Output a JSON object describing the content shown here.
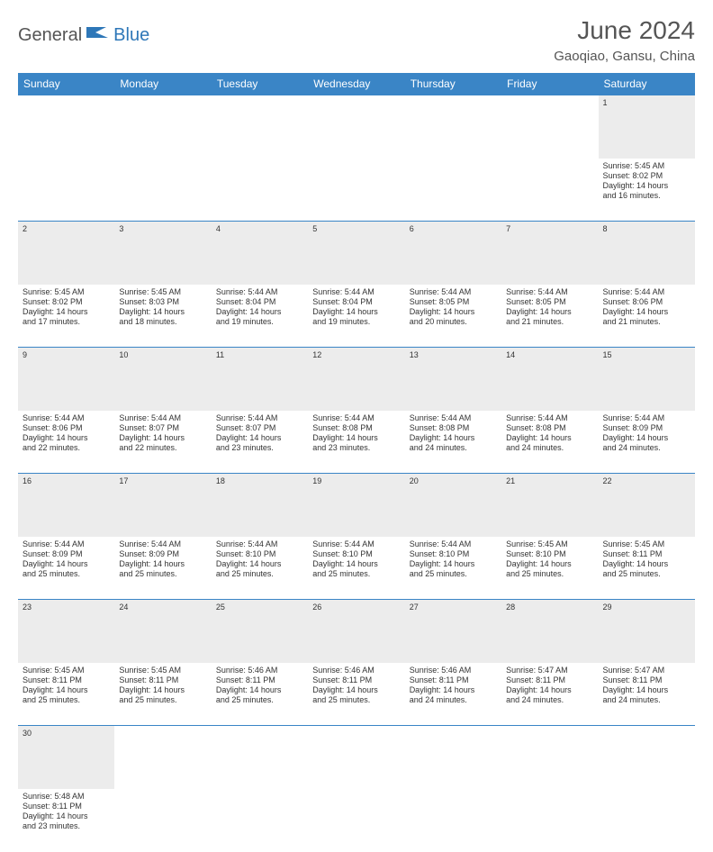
{
  "logo": {
    "part1": "General",
    "part2": "Blue"
  },
  "title": "June 2024",
  "location": "Gaoqiao, Gansu, China",
  "colors": {
    "header_bg": "#3a85c6",
    "header_fg": "#ffffff",
    "daynum_bg": "#ececec",
    "border": "#3a85c6",
    "logo_accent": "#2e77b8",
    "text": "#333333"
  },
  "weekdays": [
    "Sunday",
    "Monday",
    "Tuesday",
    "Wednesday",
    "Thursday",
    "Friday",
    "Saturday"
  ],
  "weeks": [
    {
      "nums": [
        "",
        "",
        "",
        "",
        "",
        "",
        "1"
      ],
      "cells": [
        null,
        null,
        null,
        null,
        null,
        null,
        {
          "sunrise": "Sunrise: 5:45 AM",
          "sunset": "Sunset: 8:02 PM",
          "day1": "Daylight: 14 hours",
          "day2": "and 16 minutes."
        }
      ]
    },
    {
      "nums": [
        "2",
        "3",
        "4",
        "5",
        "6",
        "7",
        "8"
      ],
      "cells": [
        {
          "sunrise": "Sunrise: 5:45 AM",
          "sunset": "Sunset: 8:02 PM",
          "day1": "Daylight: 14 hours",
          "day2": "and 17 minutes."
        },
        {
          "sunrise": "Sunrise: 5:45 AM",
          "sunset": "Sunset: 8:03 PM",
          "day1": "Daylight: 14 hours",
          "day2": "and 18 minutes."
        },
        {
          "sunrise": "Sunrise: 5:44 AM",
          "sunset": "Sunset: 8:04 PM",
          "day1": "Daylight: 14 hours",
          "day2": "and 19 minutes."
        },
        {
          "sunrise": "Sunrise: 5:44 AM",
          "sunset": "Sunset: 8:04 PM",
          "day1": "Daylight: 14 hours",
          "day2": "and 19 minutes."
        },
        {
          "sunrise": "Sunrise: 5:44 AM",
          "sunset": "Sunset: 8:05 PM",
          "day1": "Daylight: 14 hours",
          "day2": "and 20 minutes."
        },
        {
          "sunrise": "Sunrise: 5:44 AM",
          "sunset": "Sunset: 8:05 PM",
          "day1": "Daylight: 14 hours",
          "day2": "and 21 minutes."
        },
        {
          "sunrise": "Sunrise: 5:44 AM",
          "sunset": "Sunset: 8:06 PM",
          "day1": "Daylight: 14 hours",
          "day2": "and 21 minutes."
        }
      ]
    },
    {
      "nums": [
        "9",
        "10",
        "11",
        "12",
        "13",
        "14",
        "15"
      ],
      "cells": [
        {
          "sunrise": "Sunrise: 5:44 AM",
          "sunset": "Sunset: 8:06 PM",
          "day1": "Daylight: 14 hours",
          "day2": "and 22 minutes."
        },
        {
          "sunrise": "Sunrise: 5:44 AM",
          "sunset": "Sunset: 8:07 PM",
          "day1": "Daylight: 14 hours",
          "day2": "and 22 minutes."
        },
        {
          "sunrise": "Sunrise: 5:44 AM",
          "sunset": "Sunset: 8:07 PM",
          "day1": "Daylight: 14 hours",
          "day2": "and 23 minutes."
        },
        {
          "sunrise": "Sunrise: 5:44 AM",
          "sunset": "Sunset: 8:08 PM",
          "day1": "Daylight: 14 hours",
          "day2": "and 23 minutes."
        },
        {
          "sunrise": "Sunrise: 5:44 AM",
          "sunset": "Sunset: 8:08 PM",
          "day1": "Daylight: 14 hours",
          "day2": "and 24 minutes."
        },
        {
          "sunrise": "Sunrise: 5:44 AM",
          "sunset": "Sunset: 8:08 PM",
          "day1": "Daylight: 14 hours",
          "day2": "and 24 minutes."
        },
        {
          "sunrise": "Sunrise: 5:44 AM",
          "sunset": "Sunset: 8:09 PM",
          "day1": "Daylight: 14 hours",
          "day2": "and 24 minutes."
        }
      ]
    },
    {
      "nums": [
        "16",
        "17",
        "18",
        "19",
        "20",
        "21",
        "22"
      ],
      "cells": [
        {
          "sunrise": "Sunrise: 5:44 AM",
          "sunset": "Sunset: 8:09 PM",
          "day1": "Daylight: 14 hours",
          "day2": "and 25 minutes."
        },
        {
          "sunrise": "Sunrise: 5:44 AM",
          "sunset": "Sunset: 8:09 PM",
          "day1": "Daylight: 14 hours",
          "day2": "and 25 minutes."
        },
        {
          "sunrise": "Sunrise: 5:44 AM",
          "sunset": "Sunset: 8:10 PM",
          "day1": "Daylight: 14 hours",
          "day2": "and 25 minutes."
        },
        {
          "sunrise": "Sunrise: 5:44 AM",
          "sunset": "Sunset: 8:10 PM",
          "day1": "Daylight: 14 hours",
          "day2": "and 25 minutes."
        },
        {
          "sunrise": "Sunrise: 5:44 AM",
          "sunset": "Sunset: 8:10 PM",
          "day1": "Daylight: 14 hours",
          "day2": "and 25 minutes."
        },
        {
          "sunrise": "Sunrise: 5:45 AM",
          "sunset": "Sunset: 8:10 PM",
          "day1": "Daylight: 14 hours",
          "day2": "and 25 minutes."
        },
        {
          "sunrise": "Sunrise: 5:45 AM",
          "sunset": "Sunset: 8:11 PM",
          "day1": "Daylight: 14 hours",
          "day2": "and 25 minutes."
        }
      ]
    },
    {
      "nums": [
        "23",
        "24",
        "25",
        "26",
        "27",
        "28",
        "29"
      ],
      "cells": [
        {
          "sunrise": "Sunrise: 5:45 AM",
          "sunset": "Sunset: 8:11 PM",
          "day1": "Daylight: 14 hours",
          "day2": "and 25 minutes."
        },
        {
          "sunrise": "Sunrise: 5:45 AM",
          "sunset": "Sunset: 8:11 PM",
          "day1": "Daylight: 14 hours",
          "day2": "and 25 minutes."
        },
        {
          "sunrise": "Sunrise: 5:46 AM",
          "sunset": "Sunset: 8:11 PM",
          "day1": "Daylight: 14 hours",
          "day2": "and 25 minutes."
        },
        {
          "sunrise": "Sunrise: 5:46 AM",
          "sunset": "Sunset: 8:11 PM",
          "day1": "Daylight: 14 hours",
          "day2": "and 25 minutes."
        },
        {
          "sunrise": "Sunrise: 5:46 AM",
          "sunset": "Sunset: 8:11 PM",
          "day1": "Daylight: 14 hours",
          "day2": "and 24 minutes."
        },
        {
          "sunrise": "Sunrise: 5:47 AM",
          "sunset": "Sunset: 8:11 PM",
          "day1": "Daylight: 14 hours",
          "day2": "and 24 minutes."
        },
        {
          "sunrise": "Sunrise: 5:47 AM",
          "sunset": "Sunset: 8:11 PM",
          "day1": "Daylight: 14 hours",
          "day2": "and 24 minutes."
        }
      ]
    },
    {
      "nums": [
        "30",
        "",
        "",
        "",
        "",
        "",
        ""
      ],
      "cells": [
        {
          "sunrise": "Sunrise: 5:48 AM",
          "sunset": "Sunset: 8:11 PM",
          "day1": "Daylight: 14 hours",
          "day2": "and 23 minutes."
        },
        null,
        null,
        null,
        null,
        null,
        null
      ]
    }
  ]
}
